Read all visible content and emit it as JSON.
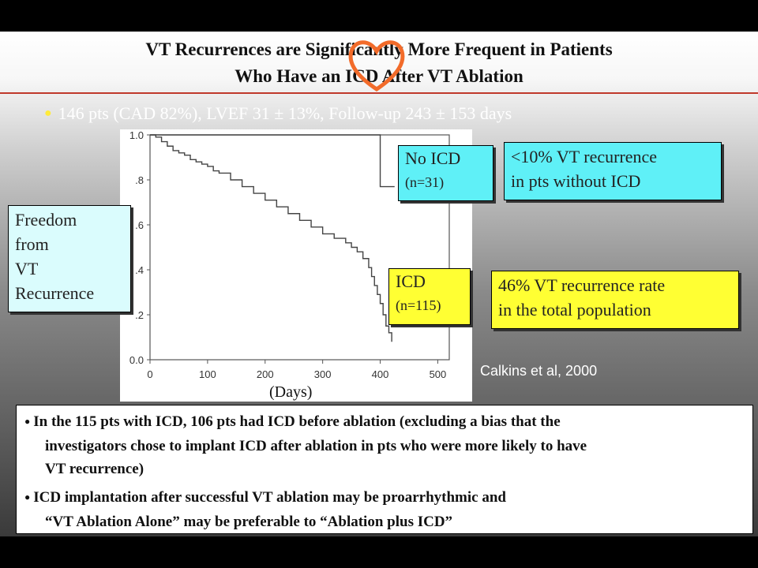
{
  "title": {
    "line1": "VT Recurrences are Significantly More Frequent in Patients",
    "line2": "Who Have an ICD After VT Ablation"
  },
  "bullet": "146 pts (CAD 82%), LVEF 31 ± 13%, Follow-up 243 ± 153 days",
  "chart_data": {
    "type": "line",
    "x_ticks": [
      "0",
      "100",
      "200",
      "300",
      "400",
      "500"
    ],
    "y_ticks": [
      "0.0",
      ".2",
      ".4",
      ".6",
      ".8",
      "1.0"
    ],
    "xlim": [
      0,
      520
    ],
    "ylim": [
      0,
      1.0
    ],
    "xlabel": "(Days)",
    "ylabel": "Freedom from VT Recurrence",
    "series": [
      {
        "name": "No ICD (n=31)",
        "x": [
          0,
          400,
          400,
          425
        ],
        "y": [
          1.0,
          1.0,
          0.77,
          0.77
        ]
      },
      {
        "name": "ICD (n=115)",
        "x": [
          0,
          10,
          20,
          30,
          40,
          50,
          60,
          70,
          80,
          90,
          100,
          110,
          120,
          140,
          160,
          180,
          200,
          220,
          240,
          260,
          280,
          300,
          320,
          340,
          350,
          360,
          370,
          380,
          385,
          390,
          395,
          400,
          405,
          410,
          415,
          420
        ],
        "y": [
          1.0,
          0.99,
          0.97,
          0.95,
          0.93,
          0.92,
          0.91,
          0.89,
          0.88,
          0.87,
          0.86,
          0.84,
          0.83,
          0.8,
          0.77,
          0.74,
          0.71,
          0.68,
          0.65,
          0.62,
          0.59,
          0.56,
          0.54,
          0.52,
          0.5,
          0.48,
          0.45,
          0.41,
          0.37,
          0.33,
          0.29,
          0.25,
          0.2,
          0.15,
          0.12,
          0.08
        ]
      }
    ]
  },
  "labels": {
    "no_icd_name": "No ICD",
    "no_icd_n": "(n=31)",
    "icd_name": "ICD",
    "icd_n": "(n=115)",
    "freedom": [
      "Freedom",
      "from",
      "VT",
      "Recurrence"
    ]
  },
  "callouts": {
    "cyan_line1": "<10% VT recurrence",
    "cyan_line2": "in pts without ICD",
    "yellow_line1": "46% VT recurrence rate",
    "yellow_line2": "in the total population"
  },
  "citation": "Calkins et al, 2000",
  "notes": {
    "note1_line1": "In the 115 pts with ICD, 106 pts had ICD before ablation (excluding a bias that the",
    "note1_line2": "investigators chose to implant ICD after ablation in pts who were more likely to have",
    "note1_line3": "VT recurrence)",
    "note2_line1": "ICD implantation after successful VT ablation may be proarrhythmic and",
    "note2_line2": "“VT Ablation Alone” may be preferable to “Ablation plus ICD”"
  },
  "colors": {
    "cyan": "#5ff0f7",
    "yellow": "#ffff33",
    "heart": "#f26b2a",
    "title_rule": "#c0392b"
  }
}
